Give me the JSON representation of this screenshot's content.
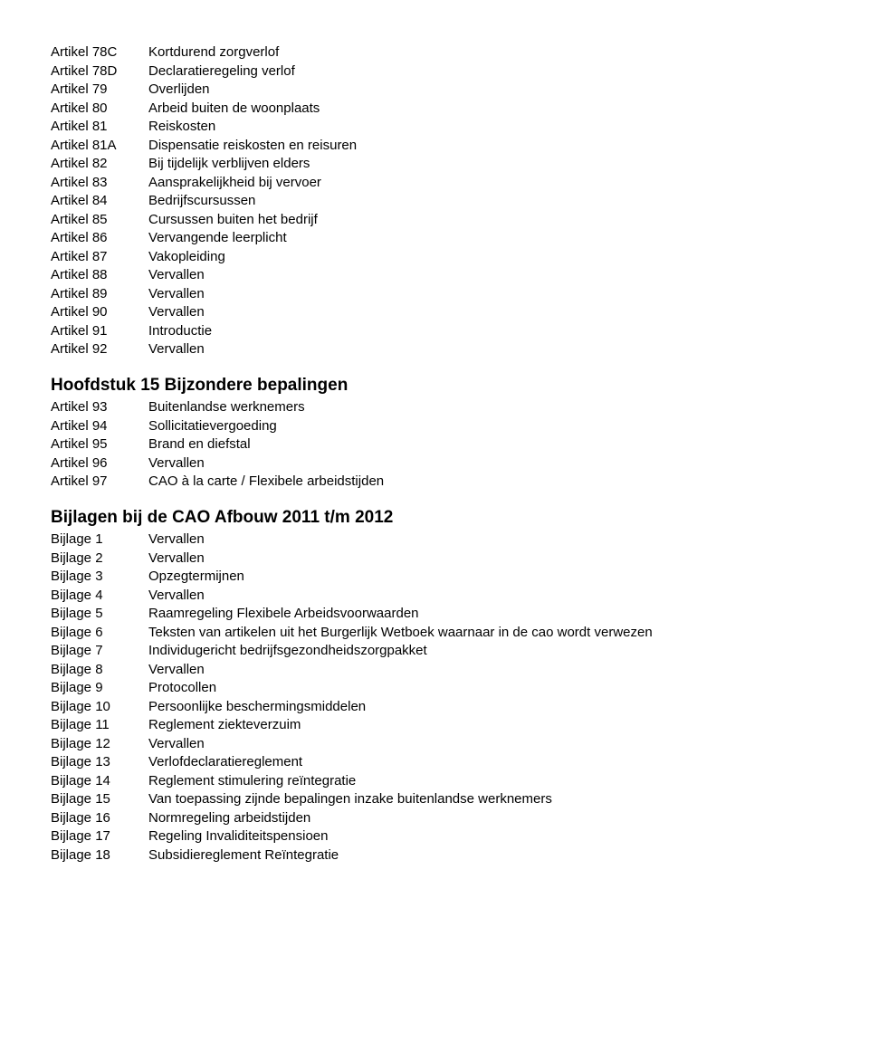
{
  "block1": {
    "label_col_width": 108,
    "rows": [
      {
        "label": "Artikel 78C",
        "desc": "Kortdurend zorgverlof"
      },
      {
        "label": "Artikel 78D",
        "desc": "Declaratieregeling verlof"
      },
      {
        "label": "Artikel 79",
        "desc": "Overlijden"
      },
      {
        "label": "Artikel 80",
        "desc": "Arbeid buiten de woonplaats"
      },
      {
        "label": "Artikel 81",
        "desc": "Reiskosten"
      },
      {
        "label": "Artikel 81A",
        "desc": "Dispensatie reiskosten en reisuren"
      },
      {
        "label": "Artikel 82",
        "desc": "Bij tijdelijk verblijven elders"
      },
      {
        "label": "Artikel 83",
        "desc": "Aansprakelijkheid bij vervoer"
      },
      {
        "label": "Artikel 84",
        "desc": "Bedrijfscursussen"
      },
      {
        "label": "Artikel 85",
        "desc": "Cursussen buiten het bedrijf"
      },
      {
        "label": "Artikel 86",
        "desc": "Vervangende leerplicht"
      },
      {
        "label": "Artikel 87",
        "desc": "Vakopleiding"
      },
      {
        "label": "Artikel 88",
        "desc": "Vervallen"
      },
      {
        "label": "Artikel 89",
        "desc": "Vervallen"
      },
      {
        "label": "Artikel 90",
        "desc": "Vervallen"
      },
      {
        "label": "Artikel 91",
        "desc": "Introductie"
      },
      {
        "label": "Artikel 92",
        "desc": "Vervallen"
      }
    ]
  },
  "section2": {
    "heading": "Hoofdstuk 15  Bijzondere bepalingen",
    "rows": [
      {
        "label": "Artikel 93",
        "desc": "Buitenlandse werknemers"
      },
      {
        "label": "Artikel 94",
        "desc": "Sollicitatievergoeding"
      },
      {
        "label": "Artikel 95",
        "desc": "Brand en diefstal"
      },
      {
        "label": "Artikel 96",
        "desc": "Vervallen"
      },
      {
        "label": "Artikel 97",
        "desc": "CAO à la carte / Flexibele arbeidstijden"
      }
    ]
  },
  "section3": {
    "heading": "Bijlagen bij de CAO Afbouw 2011 t/m 2012",
    "rows": [
      {
        "label": "Bijlage 1",
        "desc": "Vervallen"
      },
      {
        "label": "Bijlage 2",
        "desc": "Vervallen"
      },
      {
        "label": "Bijlage 3",
        "desc": "Opzegtermijnen"
      },
      {
        "label": "Bijlage 4",
        "desc": "Vervallen"
      },
      {
        "label": "Bijlage 5",
        "desc": "Raamregeling Flexibele Arbeidsvoorwaarden"
      },
      {
        "label": "Bijlage 6",
        "desc": "Teksten van artikelen uit het Burgerlijk Wetboek waarnaar in de cao wordt verwezen"
      },
      {
        "label": "Bijlage 7",
        "desc": "Individugericht bedrijfsgezondheidszorgpakket"
      },
      {
        "label": "Bijlage 8",
        "desc": "Vervallen"
      },
      {
        "label": "Bijlage 9",
        "desc": "Protocollen"
      },
      {
        "label": "Bijlage 10",
        "desc": "Persoonlijke beschermingsmiddelen"
      },
      {
        "label": "Bijlage 11",
        "desc": "Reglement ziekteverzuim"
      },
      {
        "label": "Bijlage 12",
        "desc": "Vervallen"
      },
      {
        "label": "Bijlage 13",
        "desc": "Verlofdeclaratiereglement"
      },
      {
        "label": "Bijlage 14",
        "desc": "Reglement stimulering reïntegratie"
      },
      {
        "label": "Bijlage 15",
        "desc": "Van toepassing zijnde bepalingen inzake buitenlandse werknemers"
      },
      {
        "label": "Bijlage 16",
        "desc": "Normregeling arbeidstijden"
      },
      {
        "label": "Bijlage 17",
        "desc": "Regeling Invaliditeitspensioen"
      },
      {
        "label": "Bijlage 18",
        "desc": "Subsidiereglement Reïntegratie"
      }
    ]
  }
}
